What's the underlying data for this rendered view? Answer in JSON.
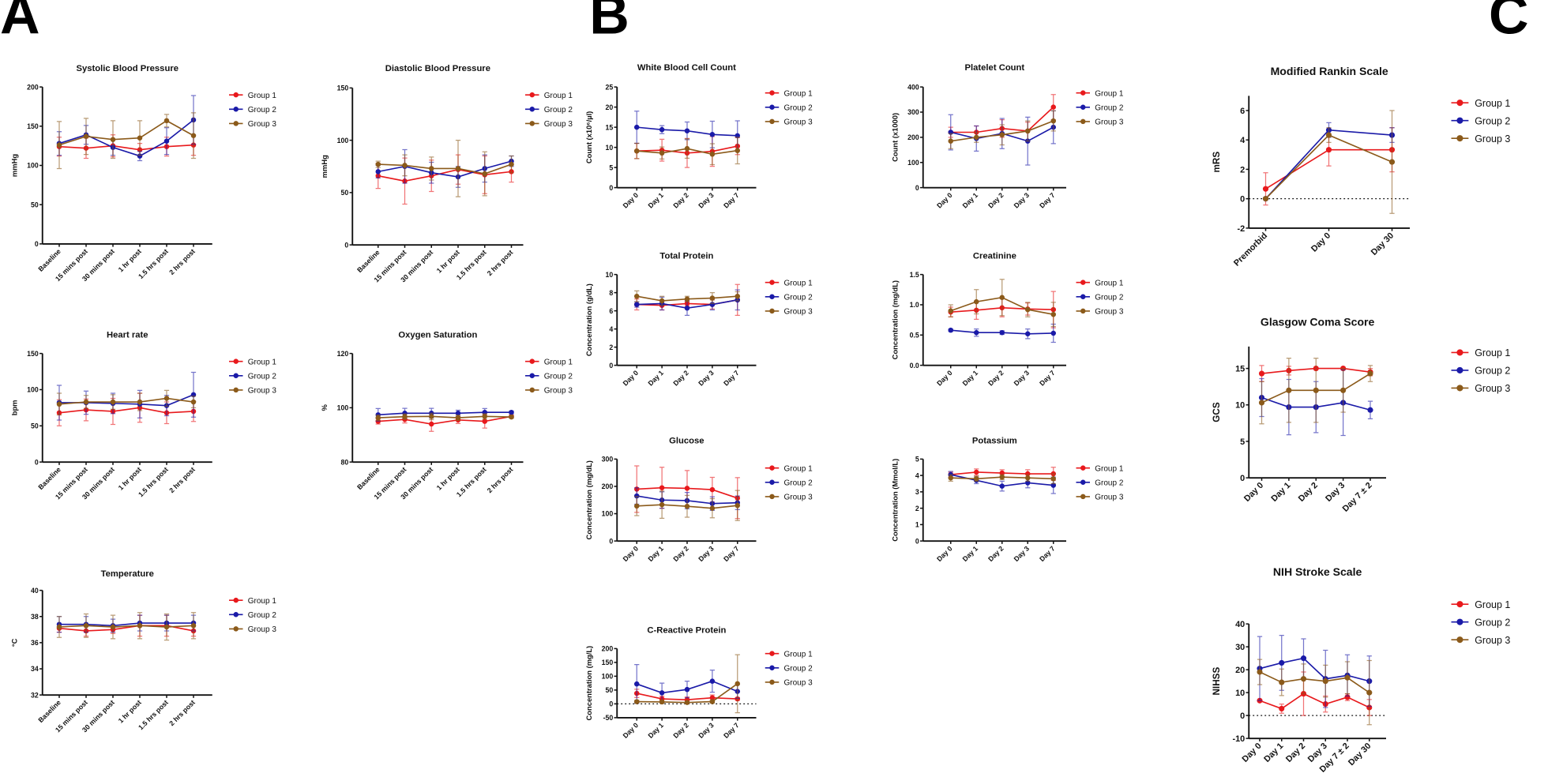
{
  "panel_labels": [
    "A",
    "B",
    "C"
  ],
  "colors": {
    "Group 1": "#e8191c",
    "Group 2": "#1a1aa8",
    "Group 3": "#8b5a1a"
  },
  "chart_data": [
    {
      "type": "line",
      "title": "Systolic Blood Pressure",
      "ylabel": "mmHg",
      "ylim": [
        0,
        200
      ],
      "yticks": [
        0,
        50,
        100,
        150,
        200
      ],
      "categories": [
        "Baseline",
        "15 mins post",
        "30 mins post",
        "1 hr post",
        "1.5 hrs post",
        "2 hrs post"
      ],
      "legend": "right",
      "error_bars": true,
      "series": [
        {
          "name": "Group 1",
          "values": [
            124,
            122,
            125,
            120,
            124,
            126
          ],
          "err": [
            12,
            13,
            14,
            8,
            12,
            13
          ]
        },
        {
          "name": "Group 2",
          "values": [
            128,
            139,
            123,
            112,
            131,
            158
          ],
          "err": [
            15,
            12,
            10,
            6,
            17,
            31
          ]
        },
        {
          "name": "Group 3",
          "values": [
            126,
            137,
            133,
            135,
            157,
            138
          ],
          "err": [
            30,
            23,
            24,
            22,
            8,
            29
          ]
        }
      ]
    },
    {
      "type": "line",
      "title": "Diastolic Blood Pressure",
      "ylabel": "mmHg",
      "ylim": [
        0,
        150
      ],
      "yticks": [
        0,
        50,
        100,
        150
      ],
      "categories": [
        "Baseline",
        "15 mins post",
        "30 mins post",
        "1 hr post",
        "1.5 hrs post",
        "2 hrs post"
      ],
      "legend": "right",
      "error_bars": true,
      "series": [
        {
          "name": "Group 1",
          "values": [
            66,
            61,
            66,
            72,
            67,
            70
          ],
          "err": [
            12,
            22,
            15,
            14,
            18,
            10
          ]
        },
        {
          "name": "Group 2",
          "values": [
            70,
            75,
            69,
            65,
            73,
            80
          ],
          "err": [
            6,
            16,
            10,
            10,
            13,
            5
          ]
        },
        {
          "name": "Group 3",
          "values": [
            77,
            76,
            73,
            73,
            68,
            77
          ],
          "err": [
            3,
            10,
            11,
            27,
            21,
            8
          ]
        }
      ]
    },
    {
      "type": "line",
      "title": "Heart rate",
      "ylabel": "bpm",
      "ylim": [
        0,
        150
      ],
      "yticks": [
        0,
        50,
        100,
        150
      ],
      "categories": [
        "Baseline",
        "15 mins post",
        "30 mins post",
        "1 hr post",
        "1.5 hrs post",
        "2 hrs post"
      ],
      "legend": "right",
      "error_bars": true,
      "series": [
        {
          "name": "Group 1",
          "values": [
            68,
            72,
            70,
            75,
            68,
            70
          ],
          "err": [
            18,
            15,
            18,
            20,
            15,
            14
          ]
        },
        {
          "name": "Group 2",
          "values": [
            82,
            82,
            81,
            80,
            78,
            93
          ],
          "err": [
            24,
            16,
            14,
            19,
            14,
            31
          ]
        },
        {
          "name": "Group 3",
          "values": [
            80,
            83,
            83,
            83,
            88,
            83
          ],
          "err": [
            15,
            9,
            10,
            12,
            11,
            8
          ]
        }
      ]
    },
    {
      "type": "line",
      "title": "Oxygen Saturation",
      "ylabel": "%",
      "ylim": [
        80,
        120
      ],
      "yticks": [
        80,
        100,
        120
      ],
      "categories": [
        "Baseline",
        "15 mins post",
        "30 mins post",
        "1 hr post",
        "1.5 hrs post",
        "2 hrs post"
      ],
      "legend": "right",
      "error_bars": true,
      "series": [
        {
          "name": "Group 1",
          "values": [
            95,
            95.7,
            94,
            95.5,
            95,
            96.8
          ],
          "err": [
            1,
            1.3,
            2.7,
            1.3,
            2.5,
            0.5
          ]
        },
        {
          "name": "Group 2",
          "values": [
            97.4,
            98,
            98,
            98,
            98.3,
            98.3
          ],
          "err": [
            2.3,
            1.8,
            1.8,
            1.1,
            1.4,
            0.5
          ]
        },
        {
          "name": "Group 3",
          "values": [
            96.3,
            96.7,
            96.8,
            96.3,
            96.8,
            96.6
          ],
          "err": [
            1,
            1,
            1.2,
            1,
            1,
            0.5
          ]
        }
      ]
    },
    {
      "type": "line",
      "title": "Temperature",
      "ylabel": "°C",
      "ylim": [
        32,
        40
      ],
      "yticks": [
        32,
        34,
        36,
        38,
        40
      ],
      "categories": [
        "Baseline",
        "15 mins post",
        "30 mins post",
        "1 hr post",
        "1.5 hrs post",
        "2 hrs post"
      ],
      "legend": "right",
      "error_bars": true,
      "series": [
        {
          "name": "Group 1",
          "values": [
            37.1,
            36.9,
            37,
            37.3,
            37.3,
            36.9
          ],
          "err": [
            0.3,
            0.4,
            0.3,
            0.8,
            0.8,
            0.4
          ]
        },
        {
          "name": "Group 2",
          "values": [
            37.4,
            37.4,
            37.3,
            37.5,
            37.5,
            37.5
          ],
          "err": [
            0.6,
            0.6,
            0.5,
            0.6,
            0.6,
            0.6
          ]
        },
        {
          "name": "Group 3",
          "values": [
            37.2,
            37.3,
            37.2,
            37.3,
            37.2,
            37.3
          ],
          "err": [
            0.8,
            0.9,
            0.9,
            1,
            1,
            1
          ]
        }
      ]
    },
    {
      "type": "line",
      "title": "White Blood Cell Count",
      "ylabel": "Count (x10⁶/µl)",
      "ylim": [
        0,
        25
      ],
      "yticks": [
        0,
        5,
        10,
        15,
        20,
        25
      ],
      "categories": [
        "Day 0",
        "Day 1",
        "Day 2",
        "Day 3",
        "Day 7"
      ],
      "legend": "right",
      "error_bars": true,
      "series": [
        {
          "name": "Group 1",
          "values": [
            9.1,
            9.3,
            8.6,
            9.0,
            10.3
          ],
          "err": [
            1.9,
            2.7,
            3.6,
            3.7,
            2.1
          ]
        },
        {
          "name": "Group 2",
          "values": [
            15,
            14.4,
            14.1,
            13.2,
            12.9
          ],
          "err": [
            4,
            1,
            2.2,
            3.3,
            3.7
          ]
        },
        {
          "name": "Group 3",
          "values": [
            9.1,
            8.6,
            9.7,
            8.3,
            9.2
          ],
          "err": [
            1.9,
            1.5,
            2.4,
            2.6,
            3.3
          ]
        }
      ]
    },
    {
      "type": "line",
      "title": "Platelet Count",
      "ylabel": "Count (x1000)",
      "ylim": [
        0,
        400
      ],
      "yticks": [
        0,
        100,
        200,
        300,
        400
      ],
      "categories": [
        "Day 0",
        "Day 1",
        "Day 2",
        "Day 3",
        "Day 7"
      ],
      "legend": "right",
      "error_bars": true,
      "series": [
        {
          "name": "Group 1",
          "values": [
            220,
            220,
            235,
            225,
            320
          ],
          "err": [
            20,
            25,
            35,
            35,
            50
          ]
        },
        {
          "name": "Group 2",
          "values": [
            220,
            195,
            215,
            185,
            240
          ],
          "err": [
            70,
            50,
            60,
            95,
            65
          ]
        },
        {
          "name": "Group 3",
          "values": [
            185,
            200,
            210,
            225,
            265
          ],
          "err": [
            30,
            20,
            40,
            40,
            40
          ]
        }
      ]
    },
    {
      "type": "line",
      "title": "Total Protein",
      "ylabel": "Concentration (g/dL)",
      "ylim": [
        0,
        10
      ],
      "yticks": [
        0,
        2,
        4,
        6,
        8,
        10
      ],
      "categories": [
        "Day 0",
        "Day 1",
        "Day 2",
        "Day 3",
        "Day 7"
      ],
      "legend": "right",
      "error_bars": true,
      "series": [
        {
          "name": "Group 1",
          "values": [
            6.7,
            6.6,
            6.8,
            6.7,
            7.2
          ],
          "err": [
            0.6,
            0.5,
            0.3,
            0.5,
            1.7
          ]
        },
        {
          "name": "Group 2",
          "values": [
            6.7,
            6.8,
            6.3,
            6.7,
            7.2
          ],
          "err": [
            0.3,
            0.7,
            0.8,
            0.6,
            1.1
          ]
        },
        {
          "name": "Group 3",
          "values": [
            7.6,
            7.1,
            7.3,
            7.4,
            7.6
          ],
          "err": [
            0.6,
            0.5,
            0.3,
            0.6,
            0.5
          ]
        }
      ]
    },
    {
      "type": "line",
      "title": "Creatinine",
      "ylabel": "Concentration (mg/dL)",
      "ylim": [
        0,
        1.5
      ],
      "yticks": [
        0.0,
        0.5,
        1.0,
        1.5
      ],
      "categories": [
        "Day 0",
        "Day 1",
        "Day 2",
        "Day 3",
        "Day 7"
      ],
      "legend": "right",
      "error_bars": true,
      "series": [
        {
          "name": "Group 1",
          "values": [
            0.88,
            0.91,
            0.95,
            0.93,
            0.92
          ],
          "err": [
            0.08,
            0.15,
            0.15,
            0.1,
            0.3
          ]
        },
        {
          "name": "Group 2",
          "values": [
            0.58,
            0.54,
            0.54,
            0.52,
            0.53
          ],
          "err": [
            0.02,
            0.06,
            0.03,
            0.08,
            0.15
          ]
        },
        {
          "name": "Group 3",
          "values": [
            0.9,
            1.05,
            1.12,
            0.92,
            0.84
          ],
          "err": [
            0.1,
            0.2,
            0.3,
            0.12,
            0.2
          ]
        }
      ]
    },
    {
      "type": "line",
      "title": "Glucose",
      "ylabel": "Concentration (mg/dL)",
      "ylim": [
        0,
        300
      ],
      "yticks": [
        0,
        100,
        200,
        300
      ],
      "categories": [
        "Day 0",
        "Day 1",
        "Day 2",
        "Day 3",
        "Day 7"
      ],
      "legend": "right",
      "error_bars": true,
      "series": [
        {
          "name": "Group 1",
          "values": [
            190,
            195,
            193,
            188,
            157
          ],
          "err": [
            85,
            75,
            65,
            45,
            75
          ]
        },
        {
          "name": "Group 2",
          "values": [
            165,
            150,
            148,
            137,
            140
          ],
          "err": [
            30,
            30,
            30,
            25,
            25
          ]
        },
        {
          "name": "Group 3",
          "values": [
            128,
            133,
            127,
            120,
            130
          ],
          "err": [
            35,
            50,
            40,
            35,
            55
          ]
        }
      ]
    },
    {
      "type": "line",
      "title": "Potassium",
      "ylabel": "Concentration (Mmol/L)",
      "ylim": [
        0,
        5
      ],
      "yticks": [
        0,
        1,
        2,
        3,
        4,
        5
      ],
      "categories": [
        "Day 0",
        "Day 1",
        "Day 2",
        "Day 3",
        "Day 7"
      ],
      "legend": "right",
      "error_bars": true,
      "series": [
        {
          "name": "Group 1",
          "values": [
            4.05,
            4.2,
            4.15,
            4.1,
            4.1
          ],
          "err": [
            0.15,
            0.2,
            0.2,
            0.25,
            0.4
          ]
        },
        {
          "name": "Group 2",
          "values": [
            4.05,
            3.7,
            3.35,
            3.55,
            3.4
          ],
          "err": [
            0.2,
            0.2,
            0.3,
            0.3,
            0.5
          ]
        },
        {
          "name": "Group 3",
          "values": [
            3.85,
            3.8,
            3.9,
            3.85,
            3.8
          ],
          "err": [
            0.2,
            0.15,
            0.15,
            0.2,
            0.3
          ]
        }
      ]
    },
    {
      "type": "line",
      "title": "C-Reactive Protein",
      "ylabel": "Concentration (mg/L)",
      "ylim": [
        -50,
        200
      ],
      "yticks": [
        -50,
        0,
        50,
        100,
        150,
        200
      ],
      "reference_line": 0,
      "categories": [
        "Day 0",
        "Day 1",
        "Day 2",
        "Day 3",
        "Day 7"
      ],
      "legend": "right",
      "error_bars": true,
      "series": [
        {
          "name": "Group 1",
          "values": [
            38,
            18,
            15,
            22,
            18
          ],
          "err": [
            15,
            10,
            10,
            10,
            5
          ]
        },
        {
          "name": "Group 2",
          "values": [
            72,
            40,
            52,
            82,
            45
          ],
          "err": [
            70,
            35,
            30,
            40,
            25
          ]
        },
        {
          "name": "Group 3",
          "values": [
            8,
            7,
            5,
            8,
            73
          ],
          "err": [
            5,
            5,
            5,
            5,
            105
          ]
        }
      ]
    },
    {
      "type": "line",
      "title": "Modified Rankin Scale",
      "ylabel": "mRS",
      "ylim": [
        -2,
        7
      ],
      "yticks": [
        -2,
        0,
        2,
        4,
        6
      ],
      "reference_line": 0,
      "categories": [
        "Premorbid",
        "Day 0",
        "Day 30"
      ],
      "legend": "right",
      "error_bars": true,
      "series": [
        {
          "name": "Group 1",
          "values": [
            0.67,
            3.33,
            3.33
          ],
          "err": [
            1.1,
            1.1,
            1.5
          ]
        },
        {
          "name": "Group 2",
          "values": [
            0,
            4.67,
            4.33
          ],
          "err": [
            0,
            0.5,
            0.5
          ]
        },
        {
          "name": "Group 3",
          "values": [
            0,
            4.33,
            2.5
          ],
          "err": [
            0,
            0.5,
            3.5
          ]
        }
      ]
    },
    {
      "type": "line",
      "title": "Glasgow Coma Score",
      "ylabel": "GCS",
      "ylim": [
        0,
        18
      ],
      "yticks": [
        0,
        5,
        10,
        15
      ],
      "categories": [
        "Day 0",
        "Day 1",
        "Day 2",
        "Day 3",
        "Day 7 ± 2"
      ],
      "legend": "right",
      "error_bars": true,
      "series": [
        {
          "name": "Group 1",
          "values": [
            14.3,
            14.7,
            15,
            15,
            14.5
          ],
          "err": [
            1.1,
            0.6,
            0,
            0,
            0.5
          ]
        },
        {
          "name": "Group 2",
          "values": [
            11,
            9.7,
            9.7,
            10.3,
            9.3
          ],
          "err": [
            2.6,
            3.8,
            3.5,
            4.5,
            1.2
          ]
        },
        {
          "name": "Group 3",
          "values": [
            10.3,
            12,
            12,
            12,
            14.3
          ],
          "err": [
            2.9,
            4.4,
            4.4,
            3,
            1.1
          ]
        }
      ]
    },
    {
      "type": "line",
      "title": "NIH Stroke Scale",
      "ylabel": "NIHSS",
      "ylim": [
        -10,
        40
      ],
      "yticks": [
        -10,
        0,
        10,
        20,
        30,
        40
      ],
      "reference_line": 0,
      "categories": [
        "Day 0",
        "Day 1",
        "Day 2",
        "Day 3",
        "Day 7 ± 2",
        "Day 30"
      ],
      "legend": "right",
      "error_bars": true,
      "series": [
        {
          "name": "Group 1",
          "values": [
            6.5,
            3,
            9.5,
            5,
            8,
            3.5
          ],
          "err": [
            0,
            2,
            9.5,
            3.5,
            1.5,
            3.5
          ]
        },
        {
          "name": "Group 2",
          "values": [
            20.5,
            23,
            25,
            16,
            17.5,
            15
          ],
          "err": [
            14,
            12,
            8.5,
            12.5,
            9,
            11
          ]
        },
        {
          "name": "Group 3",
          "values": [
            19,
            14.5,
            16,
            15,
            16.5,
            10
          ],
          "err": [
            5.5,
            5.8,
            6.5,
            7,
            7,
            14
          ]
        }
      ]
    }
  ]
}
